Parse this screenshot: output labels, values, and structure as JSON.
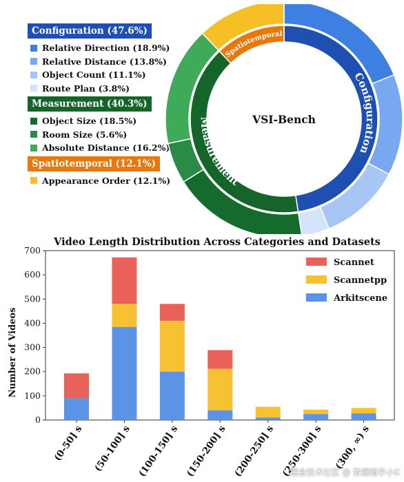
{
  "colors": {
    "configuration": "#1f4fb0",
    "measurement": "#15652b",
    "spatiotemporal": "#e8780c",
    "scannet": "#e8625a",
    "scannetpp": "#f7c232",
    "arkitscene": "#5b93e6"
  },
  "watermark": "掘金技术社区 @ 数据猎手小K",
  "chart_data": [
    {
      "type": "pie",
      "title": "VSI-Bench",
      "inner_ring": [
        {
          "label": "Configuration",
          "value": 47.6,
          "color": "#1f4fb0"
        },
        {
          "label": "Measurement",
          "value": 40.3,
          "color": "#15652b"
        },
        {
          "label": "Spatiotemporal",
          "value": 12.1,
          "color": "#e8780c"
        }
      ],
      "legend": [
        {
          "header": "Configuration (47.6%)",
          "color": "#1f4fb0",
          "items": [
            {
              "label": "Relative Direction (18.9%)",
              "value": 18.9,
              "color": "#3e7fe2"
            },
            {
              "label": "Relative Distance (13.8%)",
              "value": 13.8,
              "color": "#78a8ef"
            },
            {
              "label": "Object Count (11.1%)",
              "value": 11.1,
              "color": "#a8c6f4"
            },
            {
              "label": "Route Plan (3.8%)",
              "value": 3.8,
              "color": "#d4e3fa"
            }
          ]
        },
        {
          "header": "Measurement (40.3%)",
          "color": "#15652b",
          "items": [
            {
              "label": "Object Size (18.5%)",
              "value": 18.5,
              "color": "#156a2e"
            },
            {
              "label": "Room Size (5.6%)",
              "value": 5.6,
              "color": "#2b8a48"
            },
            {
              "label": "Absolute Distance (16.2%)",
              "value": 16.2,
              "color": "#3faa58"
            }
          ]
        },
        {
          "header": "Spatiotemporal (12.1%)",
          "color": "#e8780c",
          "items": [
            {
              "label": "Appearance Order (12.1%)",
              "value": 12.1,
              "color": "#f5bf25"
            }
          ]
        }
      ]
    },
    {
      "type": "bar",
      "stacked": true,
      "title": "Video Length Distribution Across Categories and Datasets",
      "ylabel": "Number of Videos",
      "xlabel": "",
      "ylim": [
        0,
        700
      ],
      "yticks": [
        0,
        100,
        200,
        300,
        400,
        500,
        600,
        700
      ],
      "categories": [
        "(0-50] s",
        "(50-100] s",
        "(100-150] s",
        "(150-200] s",
        "(200-250] s",
        "(250-300] s",
        "(300, ∞) s"
      ],
      "series": [
        {
          "name": "Arkitscene",
          "color": "#5b93e6",
          "values": [
            90,
            385,
            200,
            40,
            10,
            25,
            28
          ]
        },
        {
          "name": "Scannetpp",
          "color": "#f7c232",
          "values": [
            0,
            95,
            210,
            172,
            45,
            18,
            22
          ]
        },
        {
          "name": "Scannet",
          "color": "#e8625a",
          "values": [
            103,
            192,
            70,
            77,
            0,
            0,
            0
          ]
        }
      ],
      "legend_order": [
        "Scannet",
        "Scannetpp",
        "Arkitscene"
      ],
      "legend_position": "top-right",
      "grid": false
    }
  ]
}
